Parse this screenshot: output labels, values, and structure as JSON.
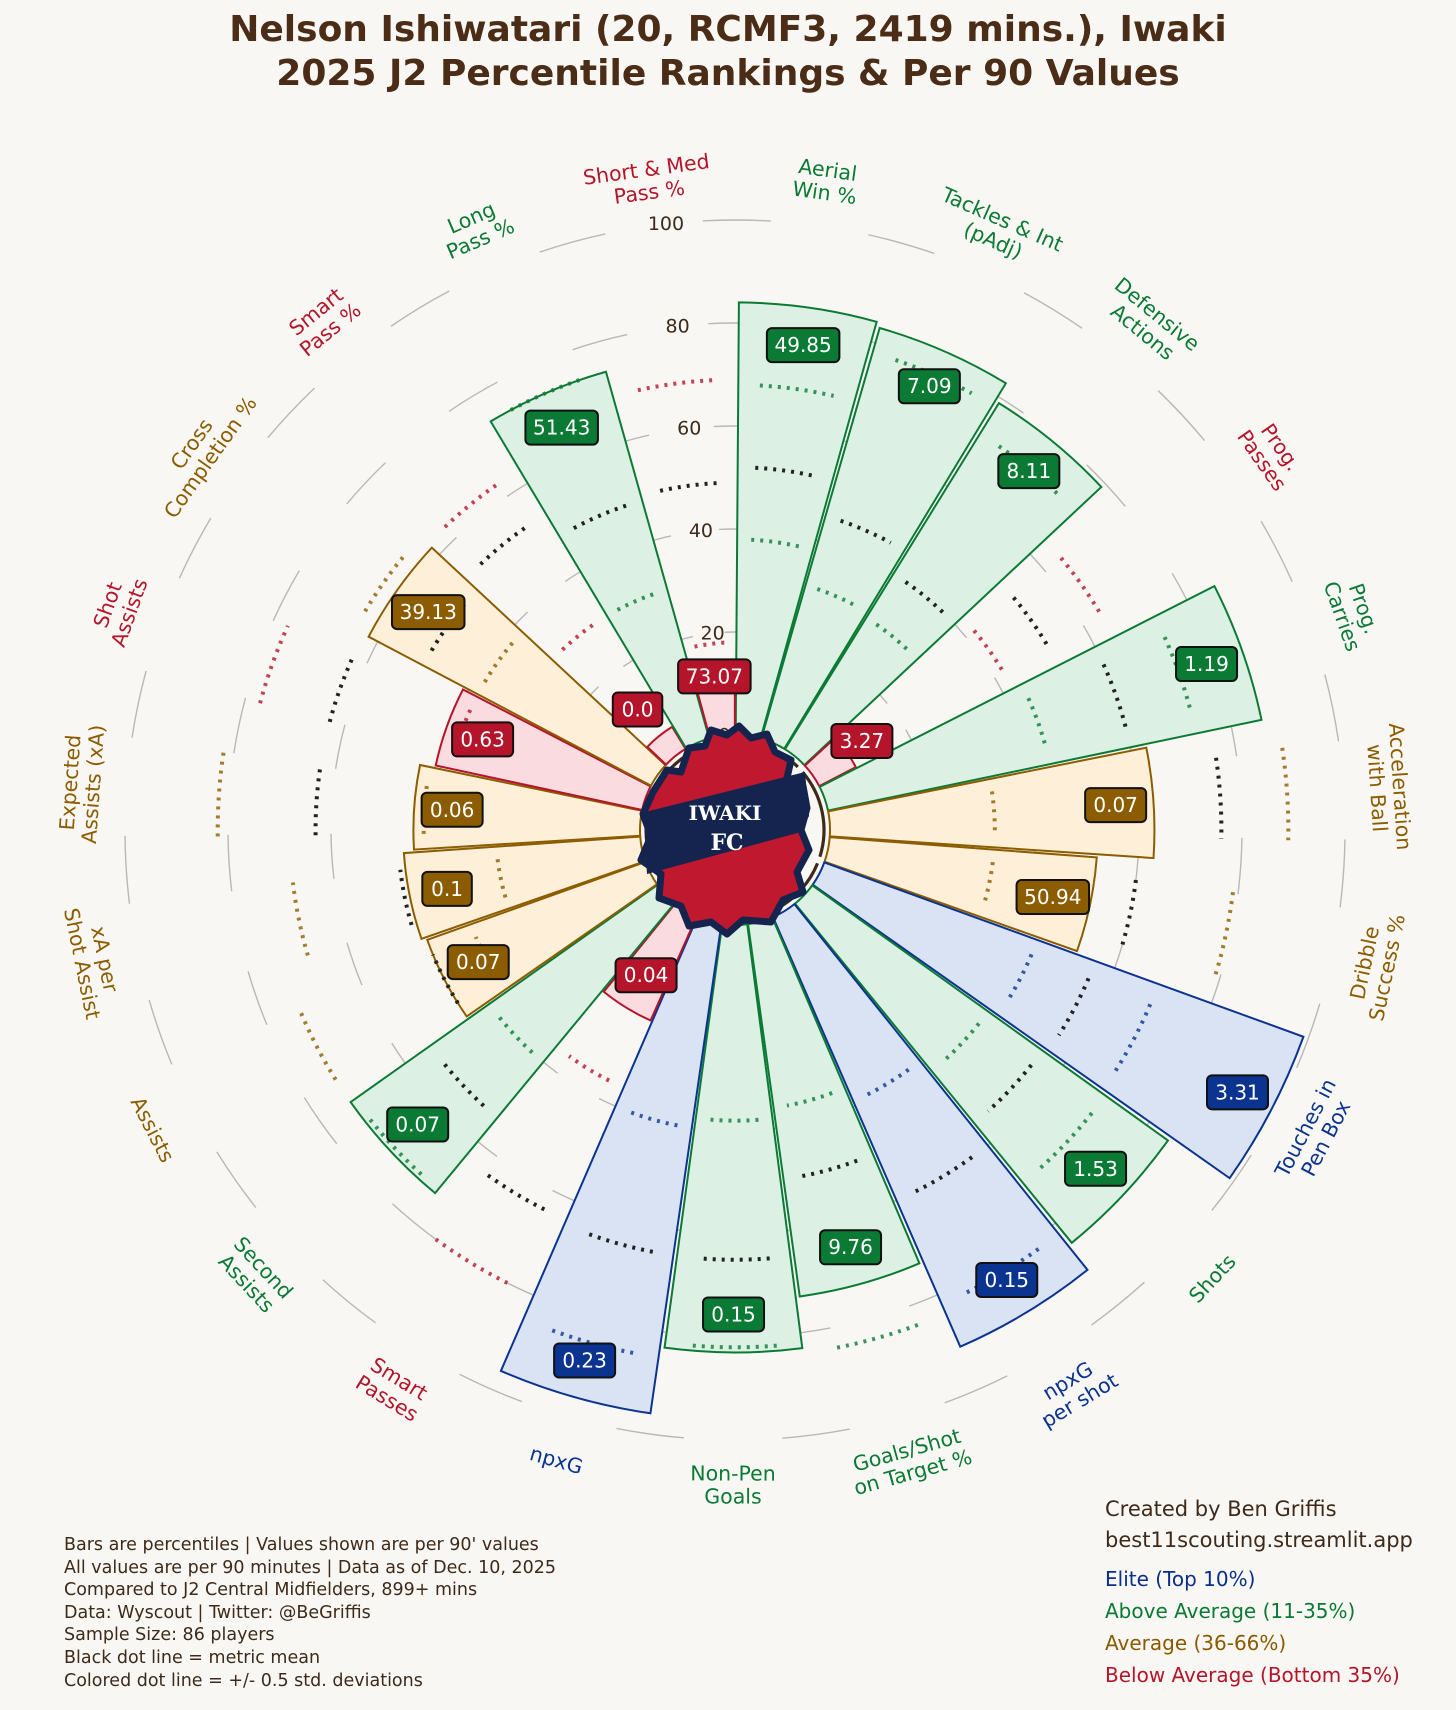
{
  "title": {
    "line1": "Nelson Ishiwatari (20, RCMF3, 2419 mins.), Iwaki",
    "line2": "2025 J2 Percentile Rankings & Per 90 Values"
  },
  "logo": {
    "text_top": "IWAKI",
    "text_bottom": "FC",
    "icon": "iwaki-fc-crest-icon"
  },
  "colors": {
    "elite": {
      "stroke": "#0a3490",
      "fill": "#dae3f3",
      "label": "#0a3490"
    },
    "above": {
      "stroke": "#0b7a35",
      "fill": "#dcf0e3",
      "label": "#0b7a35"
    },
    "average": {
      "stroke": "#8c5c00",
      "fill": "#fef0d8",
      "label": "#8c5c00"
    },
    "below": {
      "stroke": "#b4152b",
      "fill": "#fadbe0",
      "label": "#b4152b"
    },
    "mean_line": "#222222",
    "grid": "#b8b8b8",
    "background": "#f9f7f3"
  },
  "chart_data": {
    "type": "polar-bar",
    "radial_axis": {
      "range": [
        0,
        100
      ],
      "ticks": [
        "0",
        "20",
        "40",
        "60",
        "80",
        "100"
      ]
    },
    "metrics": [
      {
        "label": "Aerial\nWin %",
        "percentile": 84,
        "value": "49.85",
        "tier": "above",
        "mean": 52,
        "sd_lo": 38,
        "sd_hi": 68
      },
      {
        "label": "Tackles & Int\n(pAdj)",
        "percentile": 83,
        "value": "7.09",
        "tier": "above",
        "mean": 45,
        "sd_lo": 31,
        "sd_hi": 78
      },
      {
        "label": "Defensive\nActions",
        "percentile": 79,
        "value": "8.11",
        "tier": "above",
        "mean": 40,
        "sd_lo": 30,
        "sd_hi": 72
      },
      {
        "label": "Prog.\nPasses",
        "percentile": 8,
        "value": "3.27",
        "tier": "below",
        "mean": 52,
        "sd_lo": 42,
        "sd_hi": 64
      },
      {
        "label": "Prog.\nCarries",
        "percentile": 86,
        "value": "1.19",
        "tier": "above",
        "mean": 60,
        "sd_lo": 44,
        "sd_hi": 73
      },
      {
        "label": "Acceleration\nwith Ball",
        "percentile": 63,
        "value": "0.07",
        "tier": "average",
        "mean": 76,
        "sd_lo": 32,
        "sd_hi": 89
      },
      {
        "label": "Dribble\nSuccess %",
        "percentile": 52,
        "value": "50.94",
        "tier": "average",
        "mean": 60,
        "sd_lo": 32,
        "sd_hi": 79
      },
      {
        "label": "Touches in\nPen Box",
        "percentile": 99,
        "value": "3.31",
        "tier": "elite",
        "mean": 56,
        "sd_lo": 44,
        "sd_hi": 69
      },
      {
        "label": "Shots",
        "percentile": 85,
        "value": "1.53",
        "tier": "above",
        "mean": 55,
        "sd_lo": 42,
        "sd_hi": 70
      },
      {
        "label": "npxG\nper shot",
        "percentile": 91,
        "value": "0.15",
        "tier": "elite",
        "mean": 60,
        "sd_lo": 39,
        "sd_hi": 82
      },
      {
        "label": "Goals/Shot\non Target %",
        "percentile": 73,
        "value": "9.76",
        "tier": "above",
        "mean": 50,
        "sd_lo": 36,
        "sd_hi": 84
      },
      {
        "label": "Non-Pen\nGoals",
        "percentile": 83,
        "value": "0.15",
        "tier": "above",
        "mean": 65,
        "sd_lo": 38,
        "sd_hi": 82
      },
      {
        "label": "npxG",
        "percentile": 96,
        "value": "0.23",
        "tier": "elite",
        "mean": 65,
        "sd_lo": 40,
        "sd_hi": 85
      },
      {
        "label": "Smart\nPasses",
        "percentile": 22,
        "value": "0.04",
        "tier": "below",
        "mean": 64,
        "sd_lo": 36,
        "sd_hi": 80
      },
      {
        "label": "Second\nAssists",
        "percentile": 73,
        "value": "0.07",
        "tier": "above",
        "mean": 54,
        "sd_lo": 40,
        "sd_hi": 72
      },
      {
        "label": "Assists",
        "percentile": 45,
        "value": "0.07",
        "tier": "average",
        "mean": 45,
        "sd_lo": 36,
        "sd_hi": 73
      },
      {
        "label": "xA per\nShot Assist",
        "percentile": 46,
        "value": "0.1",
        "tier": "average",
        "mean": 47,
        "sd_lo": 28,
        "sd_hi": 68
      },
      {
        "label": "Expected\nAssists (xA)",
        "percentile": 44,
        "value": "0.06",
        "tier": "average",
        "mean": 63,
        "sd_lo": 42,
        "sd_hi": 82
      },
      {
        "label": "Shot\nAssists",
        "percentile": 41,
        "value": "0.63",
        "tier": "below",
        "mean": 63,
        "sd_lo": 38,
        "sd_hi": 77
      },
      {
        "label": "Cross\nCompletion %",
        "percentile": 62,
        "value": "39.13",
        "tier": "average",
        "mean": 50,
        "sd_lo": 38,
        "sd_hi": 65
      },
      {
        "label": "Smart\nPass %",
        "percentile": 5,
        "value": "0.0",
        "tier": "below",
        "mean": 53,
        "sd_lo": 30,
        "sd_hi": 63
      },
      {
        "label": "Long\nPass %",
        "percentile": 74,
        "value": "51.43",
        "tier": "above",
        "mean": 48,
        "sd_lo": 30,
        "sd_hi": 74
      },
      {
        "label": "Short & Med\nPass %",
        "percentile": 14,
        "value": "73.07",
        "tier": "below",
        "mean": 49,
        "sd_lo": 18,
        "sd_hi": 69
      }
    ]
  },
  "notes": [
    "Bars are percentiles | Values shown are per 90' values",
    "All values are per 90 minutes | Data as of Dec. 10, 2025",
    "Compared to J2 Central Midfielders, 899+ mins",
    "Data: Wyscout | Twitter: @BeGriffis",
    "Sample Size: 86 players",
    "Black dot line = metric mean",
    "Colored dot line = +/- 0.5 std. deviations"
  ],
  "credit": {
    "line1": "Created by Ben Griffis",
    "line2": "best11scouting.streamlit.app"
  },
  "legend": {
    "elite": "Elite (Top 10%)",
    "above": "Above Average (11-35%)",
    "average": "Average (36-66%)",
    "below": "Below Average (Bottom 35%)"
  }
}
